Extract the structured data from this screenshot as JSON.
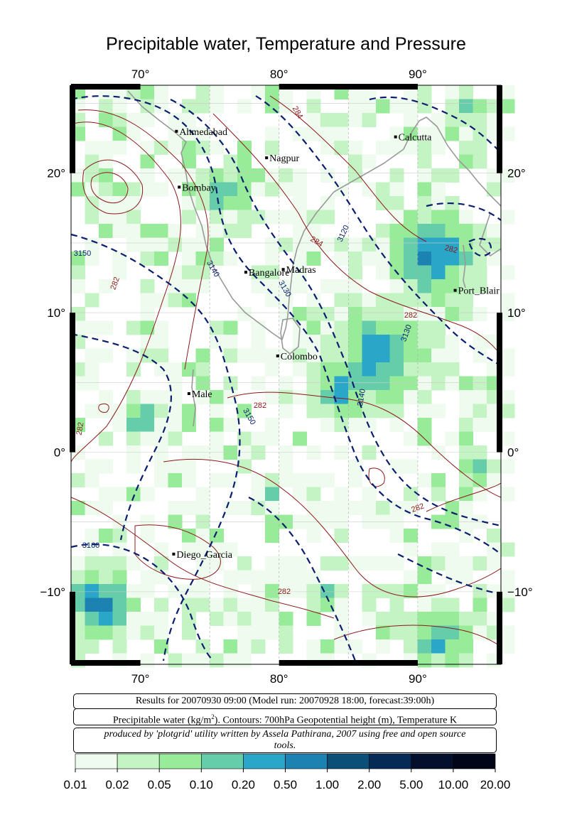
{
  "title": "Precipitable water, Temperature and Pressure",
  "axes": {
    "lon_labels": [
      "70°",
      "80°",
      "90°"
    ],
    "lat_labels": [
      "20°",
      "10°",
      "0°",
      "−10°"
    ],
    "lon_range": [
      65,
      96
    ],
    "lat_range": [
      -15.2,
      26.3
    ]
  },
  "cities": [
    {
      "name": "Ahmedabad",
      "lon": 72.6,
      "lat": 23.0
    },
    {
      "name": "Calcutta",
      "lon": 88.4,
      "lat": 22.6
    },
    {
      "name": "Nagpur",
      "lon": 79.1,
      "lat": 21.1
    },
    {
      "name": "Bombay",
      "lon": 72.8,
      "lat": 19.0
    },
    {
      "name": "Madras",
      "lon": 80.3,
      "lat": 13.1
    },
    {
      "name": "Bangalore",
      "lon": 77.6,
      "lat": 12.9
    },
    {
      "name": "Port_Blair",
      "lon": 92.7,
      "lat": 11.6
    },
    {
      "name": "Colombo",
      "lon": 79.9,
      "lat": 6.9
    },
    {
      "name": "Male",
      "lon": 73.5,
      "lat": 4.2
    },
    {
      "name": "Diego_Garcia",
      "lon": 72.4,
      "lat": -7.3
    }
  ],
  "contour_labels": {
    "temperature": [
      "284",
      "284",
      "282",
      "282",
      "282",
      "282",
      "282",
      "282",
      "282"
    ],
    "geopotential": [
      "3120",
      "3130",
      "3140",
      "3130",
      "3150",
      "3140",
      "3150",
      "3160"
    ]
  },
  "info": {
    "results": "Results for 20070930 09:00 (Model run: 20070928 18:00, forecast:39:00h)",
    "description_pre": "Precipitable water (kg/m",
    "description_sup": "2",
    "description_post": ").  Contours: 700hPa Geopotential height (m), Temperature K",
    "credit": "produced by 'plotgrid' utility written by Assela Pathirana, 2007 using free and open source tools."
  },
  "colorbar": {
    "labels": [
      "0.01",
      "0.02",
      "0.05",
      "0.10",
      "0.20",
      "0.50",
      "1.00",
      "2.00",
      "5.00",
      "10.00",
      "20.00"
    ],
    "colors": [
      "#eefbee",
      "#c4f3c4",
      "#98eb98",
      "#66cdaa",
      "#2aa6c8",
      "#1b82b1",
      "#0a4f78",
      "#052a55",
      "#030f2c",
      "#020518"
    ]
  },
  "colors": {
    "temperature_contour": "#8b1a1a",
    "geopotential_contour": "#0b1f6e",
    "coastline": "#999999",
    "grid": "#aaaaaa"
  }
}
